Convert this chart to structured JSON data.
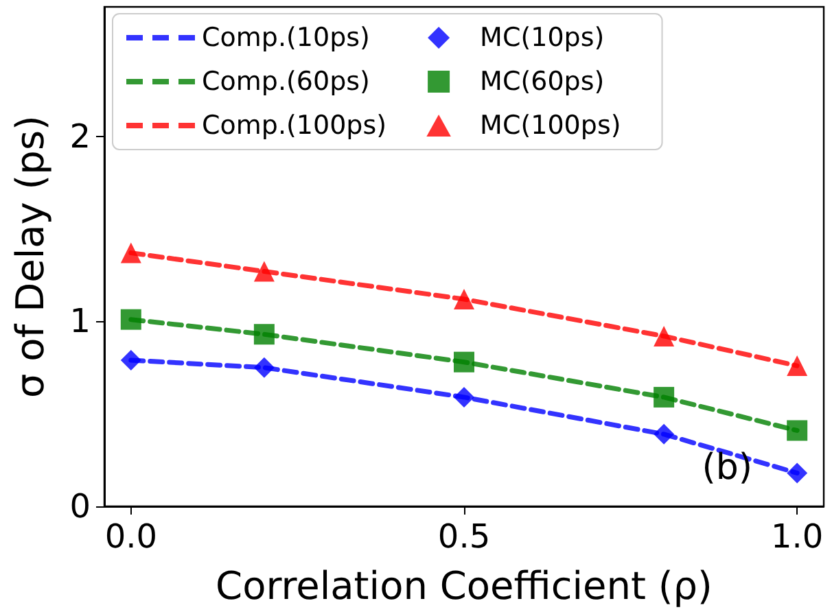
{
  "chart_data": {
    "type": "line",
    "xlabel": "Correlation Coefficient (ρ)",
    "ylabel": "σ of Delay (ps)",
    "x": [
      0,
      0.2,
      0.5,
      0.8,
      1.0
    ],
    "series": [
      {
        "name": "Comp.(10ps)",
        "line_style": "dashed",
        "marker": "none",
        "color": "#3333ff",
        "values": [
          0.79,
          0.75,
          0.59,
          0.39,
          0.18
        ]
      },
      {
        "name": "Comp.(60ps)",
        "line_style": "dashed",
        "marker": "none",
        "color": "#339933",
        "values": [
          1.01,
          0.93,
          0.78,
          0.59,
          0.41
        ]
      },
      {
        "name": "Comp.(100ps)",
        "line_style": "dashed",
        "marker": "none",
        "color": "#ff3333",
        "values": [
          1.37,
          1.27,
          1.12,
          0.92,
          0.76
        ]
      },
      {
        "name": "MC(10ps)",
        "type": "scatter",
        "marker": "diamond",
        "color": "#0000ff",
        "values": [
          0.79,
          0.75,
          0.59,
          0.39,
          0.18
        ]
      },
      {
        "name": "MC(60ps)",
        "type": "scatter",
        "marker": "square",
        "color": "#008000",
        "values": [
          1.01,
          0.93,
          0.78,
          0.59,
          0.41
        ]
      },
      {
        "name": "MC(100ps)",
        "type": "scatter",
        "marker": "triangle",
        "color": "#ff0000",
        "values": [
          1.37,
          1.27,
          1.12,
          0.92,
          0.76
        ]
      }
    ],
    "xlim": [
      -0.04,
      1.04
    ],
    "xticks": [
      {
        "value": 0,
        "label": "0.0"
      },
      {
        "value": 0.5,
        "label": "0.5"
      },
      {
        "value": 1,
        "label": "1.0"
      }
    ],
    "ylim": [
      0,
      2.7
    ],
    "yticks": [
      0,
      1,
      2
    ],
    "annotations": [
      "(b)"
    ],
    "legend": "top left",
    "grid": false
  }
}
